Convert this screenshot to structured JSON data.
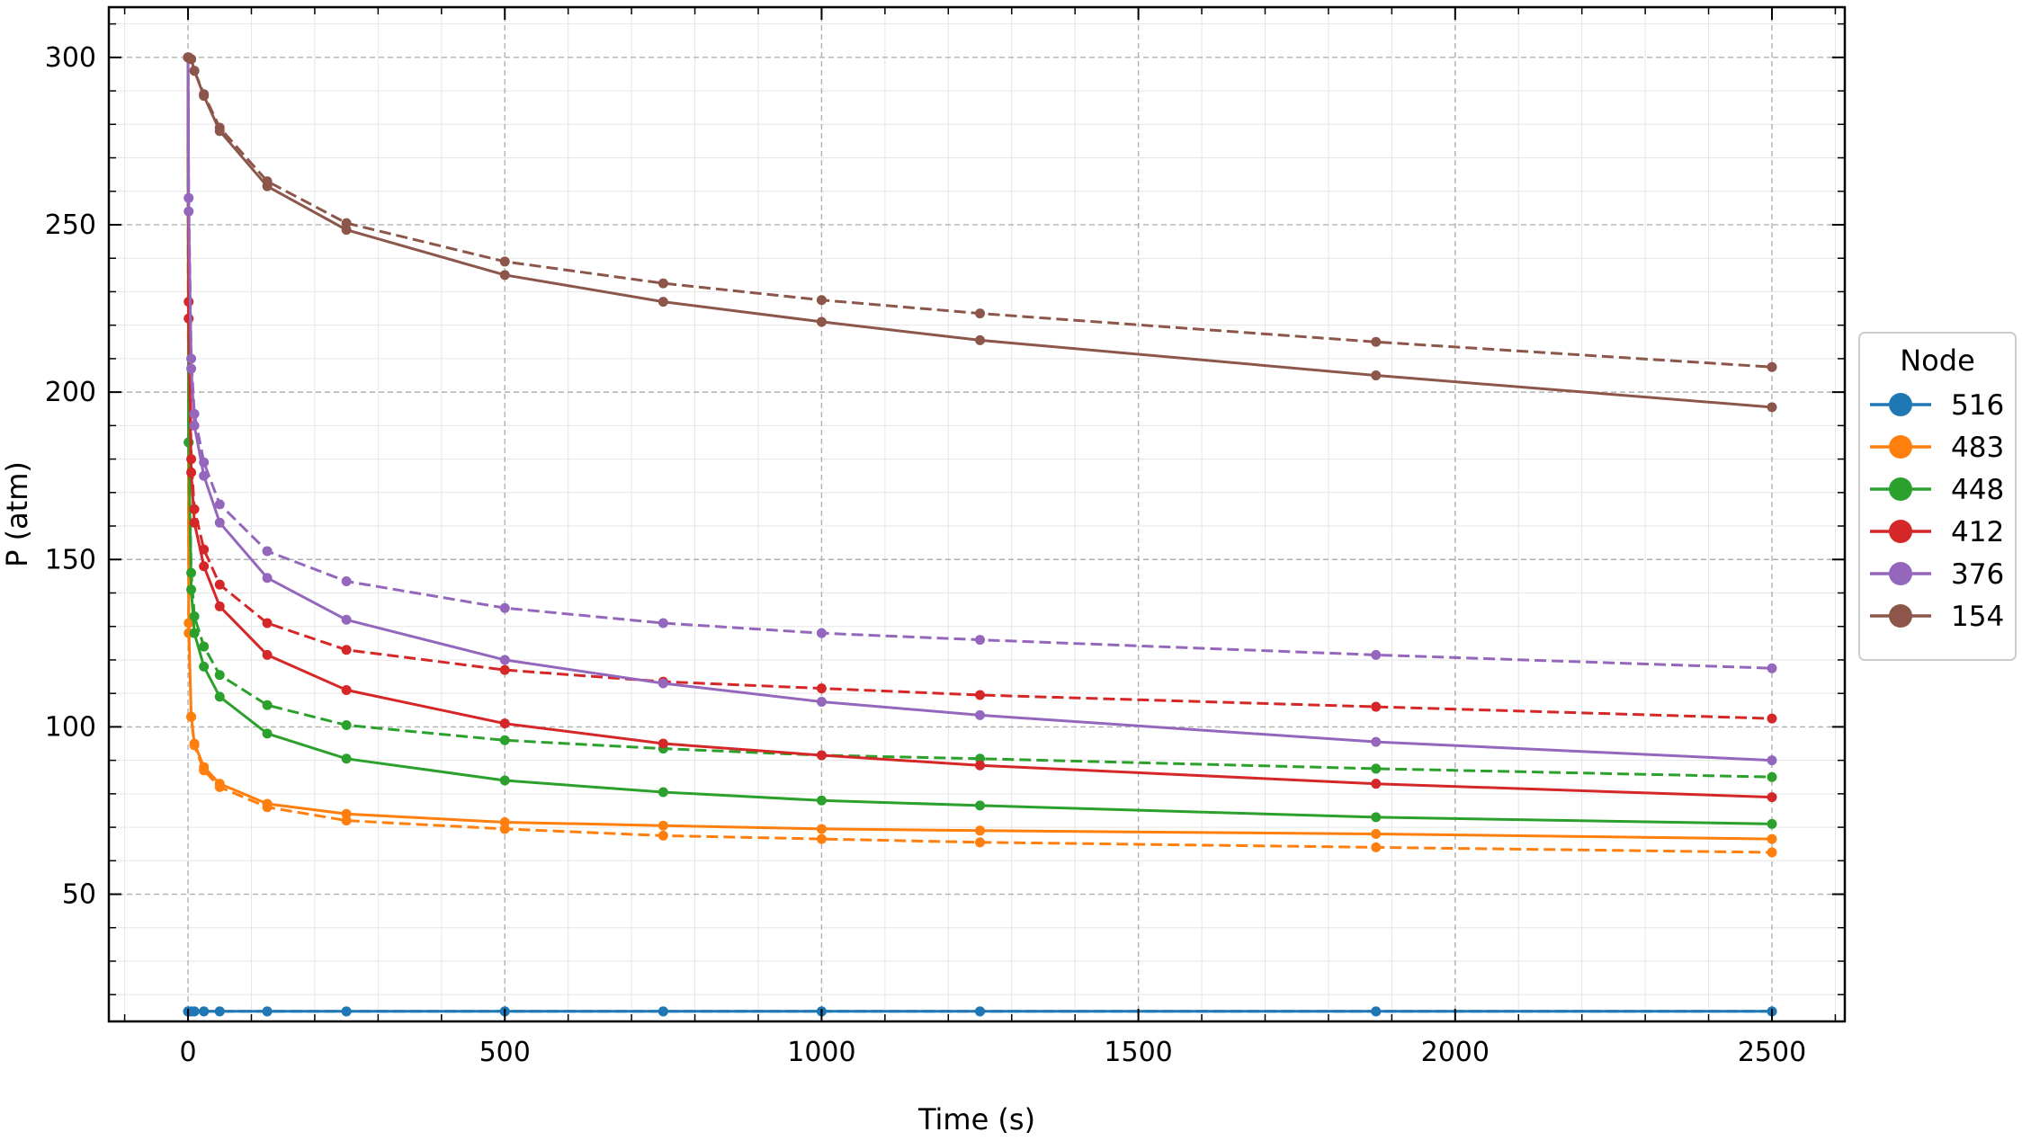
{
  "chart_data": {
    "type": "line",
    "title": "",
    "xlabel": "Time (s)",
    "ylabel": "P (atm)",
    "xlim": [
      -125,
      2615
    ],
    "ylim": [
      12,
      315
    ],
    "xticks": [
      0,
      500,
      1000,
      1500,
      2000,
      2500
    ],
    "xtick_labels": [
      "0",
      "500",
      "1000",
      "1500",
      "2000",
      "2500"
    ],
    "yticks": [
      50,
      100,
      150,
      200,
      250,
      300
    ],
    "ytick_labels": [
      "50",
      "100",
      "150",
      "200",
      "250",
      "300"
    ],
    "grid": true,
    "legend": {
      "title": "Node",
      "position": "right-outside"
    },
    "x": [
      0,
      1,
      5,
      10,
      25,
      50,
      125,
      250,
      500,
      750,
      1000,
      1250,
      1875,
      2500
    ],
    "series": [
      {
        "name": "516",
        "color": "#1f77b4",
        "style": "solid",
        "values": [
          15,
          15,
          15,
          15,
          15,
          15,
          15,
          15,
          15,
          15,
          15,
          15,
          15,
          15
        ]
      },
      {
        "name": "",
        "color": "#1f77b4",
        "style": "dashed",
        "values": [
          15,
          15,
          15,
          15,
          15,
          15,
          15,
          15,
          15,
          15,
          15,
          15,
          15,
          15
        ]
      },
      {
        "name": "483",
        "color": "#ff7f0e",
        "style": "solid",
        "values": [
          300,
          131,
          103,
          95,
          88,
          83,
          77,
          74,
          71.5,
          70.5,
          69.5,
          69,
          68,
          66.5
        ]
      },
      {
        "name": "",
        "color": "#ff7f0e",
        "style": "dashed",
        "values": [
          300,
          128,
          103,
          94.5,
          87,
          82,
          76,
          72,
          69.5,
          67.5,
          66.5,
          65.5,
          64,
          62.5
        ]
      },
      {
        "name": "448",
        "color": "#2ca02c",
        "style": "solid",
        "values": [
          300,
          185,
          141,
          128,
          118,
          109,
          98,
          90.5,
          84,
          80.5,
          78,
          76.5,
          73,
          71
        ]
      },
      {
        "name": "",
        "color": "#2ca02c",
        "style": "dashed",
        "values": [
          300,
          185,
          146,
          133,
          124,
          115.5,
          106.5,
          100.5,
          96,
          93.5,
          91.5,
          90.5,
          87.5,
          85
        ]
      },
      {
        "name": "412",
        "color": "#d62728",
        "style": "solid",
        "values": [
          300,
          222,
          176,
          161,
          148,
          136,
          121.5,
          111,
          101,
          95,
          91.5,
          88.5,
          83,
          79
        ]
      },
      {
        "name": "",
        "color": "#d62728",
        "style": "dashed",
        "values": [
          300,
          227,
          180,
          165,
          153,
          142.5,
          131,
          123,
          117,
          113.5,
          111.5,
          109.5,
          106,
          102.5
        ]
      },
      {
        "name": "376",
        "color": "#9467bd",
        "style": "solid",
        "values": [
          300,
          254,
          207,
          190,
          175,
          161,
          144.5,
          132,
          120,
          113,
          107.5,
          103.5,
          95.5,
          90
        ]
      },
      {
        "name": "",
        "color": "#9467bd",
        "style": "dashed",
        "values": [
          300,
          258,
          210,
          193.5,
          179,
          166.5,
          152.5,
          143.5,
          135.5,
          131,
          128,
          126,
          121.5,
          117.5
        ]
      },
      {
        "name": "154",
        "color": "#8c564b",
        "style": "solid",
        "values": [
          300,
          300,
          299.5,
          296,
          288.5,
          278,
          261.5,
          248.5,
          235,
          227,
          221,
          215.5,
          205,
          195.5
        ]
      },
      {
        "name": "",
        "color": "#8c564b",
        "style": "dashed",
        "values": [
          300,
          300,
          299.5,
          296,
          289,
          279,
          263,
          250.5,
          239,
          232.5,
          227.5,
          223.5,
          215,
          207.5
        ]
      }
    ]
  }
}
